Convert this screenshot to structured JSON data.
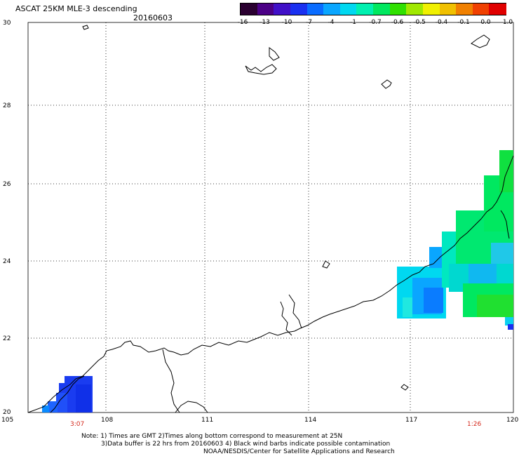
{
  "header": {
    "title": "ASCAT 25KM MLE-3 descending",
    "date": "20160603"
  },
  "colorbar": {
    "colors": [
      "#2a0030",
      "#4b0086",
      "#4010c8",
      "#1a30f0",
      "#0a6cff",
      "#0aa6ff",
      "#00d8f0",
      "#00f0b0",
      "#00e860",
      "#30e000",
      "#a0e800",
      "#f0f000",
      "#f0c000",
      "#f08000",
      "#f04000",
      "#e00000"
    ],
    "labels": [
      "-16",
      "-13",
      "-10",
      "-7",
      "-4",
      "-1",
      "-0.7",
      "-0.6",
      "-0.5",
      "-0.4",
      "-0.1",
      "0.0",
      "1.0"
    ]
  },
  "map": {
    "lon_range": [
      105,
      120
    ],
    "lat_range": [
      20,
      30
    ],
    "x_ticks": [
      "105",
      "108",
      "111",
      "114",
      "117",
      "120"
    ],
    "y_ticks": [
      "30",
      "28",
      "26",
      "24",
      "22",
      "20"
    ],
    "time_left": "3:07",
    "time_right": "1:26",
    "land_color": "#ffffff",
    "coast_color": "#000000"
  },
  "notes": {
    "line1": "Note: 1) Times are GMT 2)Times along bottom correspond to measurement at 25N",
    "line2": "3)Data buffer is 22 hrs from 20160603 4) Black wind barbs indicate possible contamination",
    "line3": "NOAA/NESDIS/Center for Satellite Applications and Research"
  }
}
